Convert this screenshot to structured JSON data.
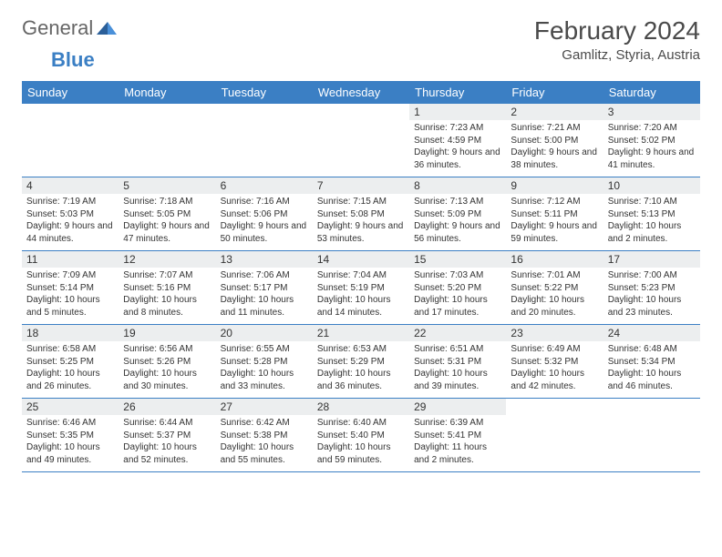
{
  "logo": {
    "text1": "General",
    "text2": "Blue"
  },
  "title": "February 2024",
  "location": "Gamlitz, Styria, Austria",
  "weekdays": [
    "Sunday",
    "Monday",
    "Tuesday",
    "Wednesday",
    "Thursday",
    "Friday",
    "Saturday"
  ],
  "colors": {
    "header_bg": "#3b7fc4",
    "header_text": "#ffffff",
    "daynum_bg": "#eceeef",
    "border": "#3b7fc4",
    "text": "#333333",
    "title_color": "#4a4a4a"
  },
  "fonts": {
    "title_size": 28,
    "location_size": 15,
    "weekday_size": 13,
    "daynum_size": 12,
    "info_size": 10
  },
  "weeks": [
    [
      null,
      null,
      null,
      null,
      {
        "n": "1",
        "sr": "7:23 AM",
        "ss": "4:59 PM",
        "dl": "9 hours and 36 minutes."
      },
      {
        "n": "2",
        "sr": "7:21 AM",
        "ss": "5:00 PM",
        "dl": "9 hours and 38 minutes."
      },
      {
        "n": "3",
        "sr": "7:20 AM",
        "ss": "5:02 PM",
        "dl": "9 hours and 41 minutes."
      }
    ],
    [
      {
        "n": "4",
        "sr": "7:19 AM",
        "ss": "5:03 PM",
        "dl": "9 hours and 44 minutes."
      },
      {
        "n": "5",
        "sr": "7:18 AM",
        "ss": "5:05 PM",
        "dl": "9 hours and 47 minutes."
      },
      {
        "n": "6",
        "sr": "7:16 AM",
        "ss": "5:06 PM",
        "dl": "9 hours and 50 minutes."
      },
      {
        "n": "7",
        "sr": "7:15 AM",
        "ss": "5:08 PM",
        "dl": "9 hours and 53 minutes."
      },
      {
        "n": "8",
        "sr": "7:13 AM",
        "ss": "5:09 PM",
        "dl": "9 hours and 56 minutes."
      },
      {
        "n": "9",
        "sr": "7:12 AM",
        "ss": "5:11 PM",
        "dl": "9 hours and 59 minutes."
      },
      {
        "n": "10",
        "sr": "7:10 AM",
        "ss": "5:13 PM",
        "dl": "10 hours and 2 minutes."
      }
    ],
    [
      {
        "n": "11",
        "sr": "7:09 AM",
        "ss": "5:14 PM",
        "dl": "10 hours and 5 minutes."
      },
      {
        "n": "12",
        "sr": "7:07 AM",
        "ss": "5:16 PM",
        "dl": "10 hours and 8 minutes."
      },
      {
        "n": "13",
        "sr": "7:06 AM",
        "ss": "5:17 PM",
        "dl": "10 hours and 11 minutes."
      },
      {
        "n": "14",
        "sr": "7:04 AM",
        "ss": "5:19 PM",
        "dl": "10 hours and 14 minutes."
      },
      {
        "n": "15",
        "sr": "7:03 AM",
        "ss": "5:20 PM",
        "dl": "10 hours and 17 minutes."
      },
      {
        "n": "16",
        "sr": "7:01 AM",
        "ss": "5:22 PM",
        "dl": "10 hours and 20 minutes."
      },
      {
        "n": "17",
        "sr": "7:00 AM",
        "ss": "5:23 PM",
        "dl": "10 hours and 23 minutes."
      }
    ],
    [
      {
        "n": "18",
        "sr": "6:58 AM",
        "ss": "5:25 PM",
        "dl": "10 hours and 26 minutes."
      },
      {
        "n": "19",
        "sr": "6:56 AM",
        "ss": "5:26 PM",
        "dl": "10 hours and 30 minutes."
      },
      {
        "n": "20",
        "sr": "6:55 AM",
        "ss": "5:28 PM",
        "dl": "10 hours and 33 minutes."
      },
      {
        "n": "21",
        "sr": "6:53 AM",
        "ss": "5:29 PM",
        "dl": "10 hours and 36 minutes."
      },
      {
        "n": "22",
        "sr": "6:51 AM",
        "ss": "5:31 PM",
        "dl": "10 hours and 39 minutes."
      },
      {
        "n": "23",
        "sr": "6:49 AM",
        "ss": "5:32 PM",
        "dl": "10 hours and 42 minutes."
      },
      {
        "n": "24",
        "sr": "6:48 AM",
        "ss": "5:34 PM",
        "dl": "10 hours and 46 minutes."
      }
    ],
    [
      {
        "n": "25",
        "sr": "6:46 AM",
        "ss": "5:35 PM",
        "dl": "10 hours and 49 minutes."
      },
      {
        "n": "26",
        "sr": "6:44 AM",
        "ss": "5:37 PM",
        "dl": "10 hours and 52 minutes."
      },
      {
        "n": "27",
        "sr": "6:42 AM",
        "ss": "5:38 PM",
        "dl": "10 hours and 55 minutes."
      },
      {
        "n": "28",
        "sr": "6:40 AM",
        "ss": "5:40 PM",
        "dl": "10 hours and 59 minutes."
      },
      {
        "n": "29",
        "sr": "6:39 AM",
        "ss": "5:41 PM",
        "dl": "11 hours and 2 minutes."
      },
      null,
      null
    ]
  ],
  "labels": {
    "sunrise": "Sunrise:",
    "sunset": "Sunset:",
    "daylight": "Daylight:"
  }
}
